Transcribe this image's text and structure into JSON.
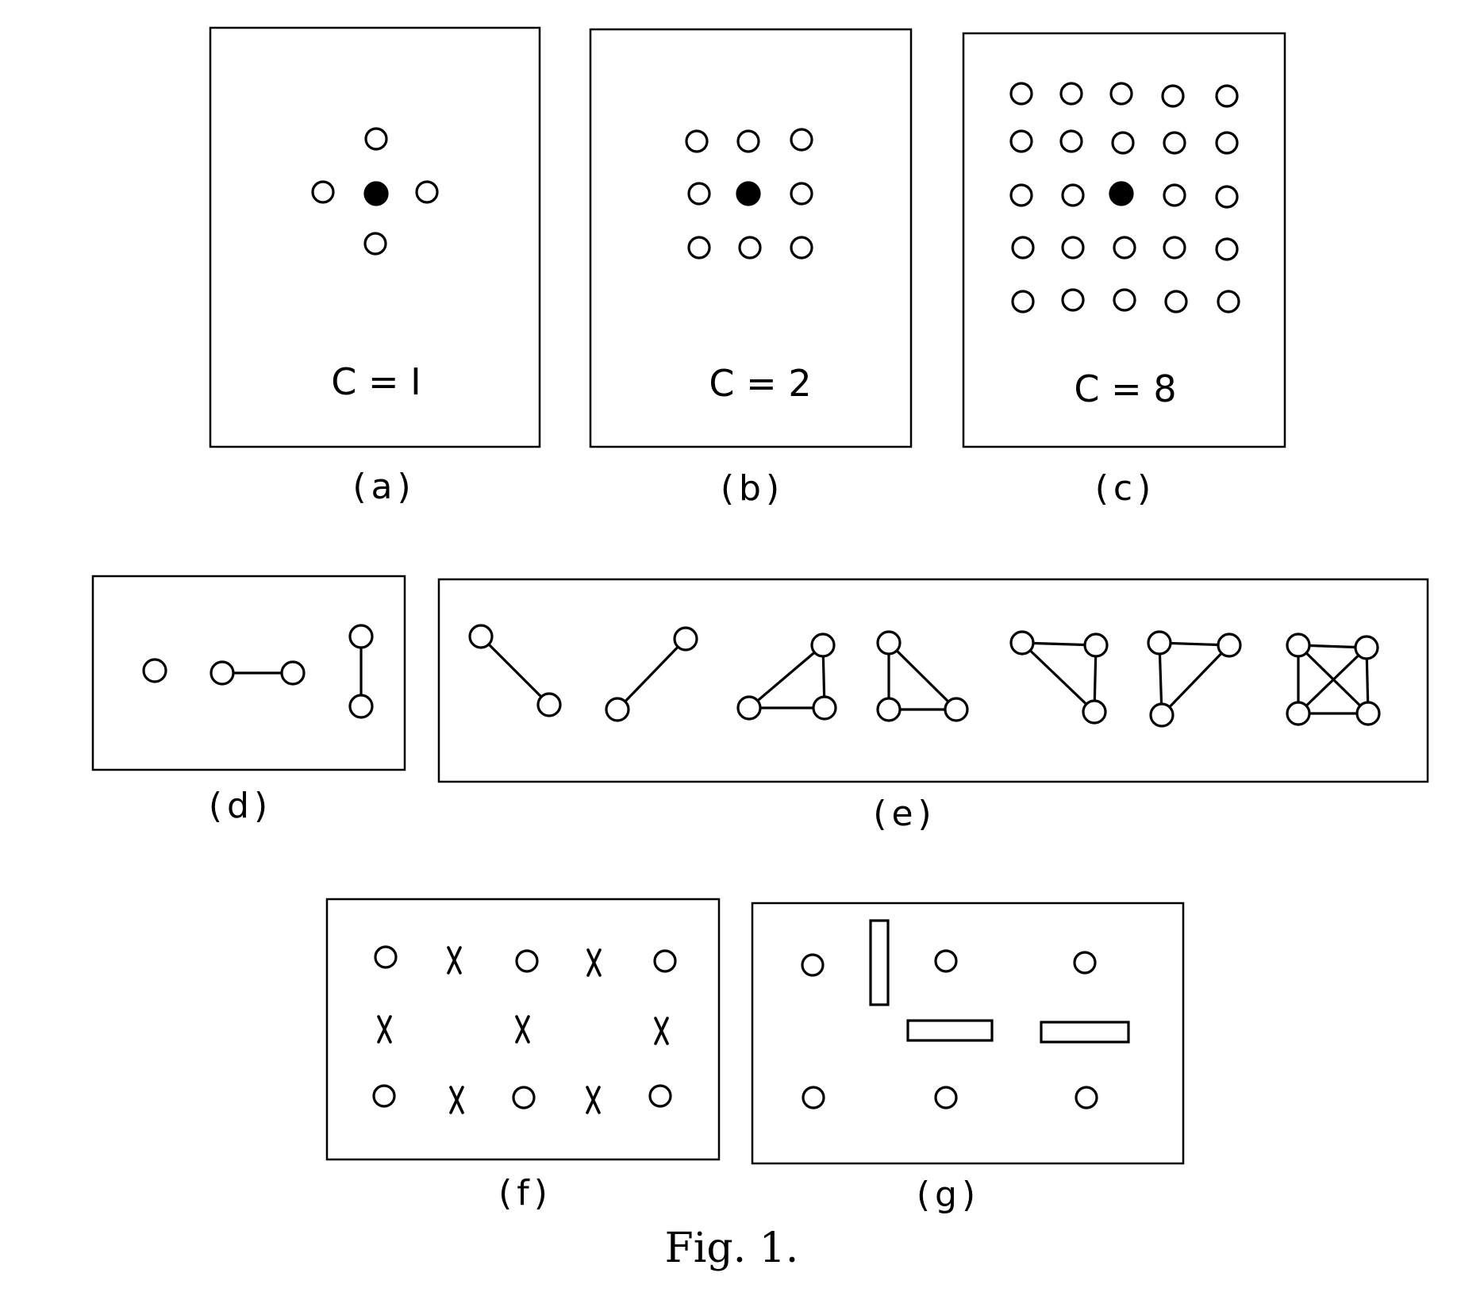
{
  "figure": {
    "caption": "Fig. 1.",
    "panels": {
      "a": {
        "label": "(a)",
        "c_text": "C = I"
      },
      "b": {
        "label": "(b)",
        "c_text": "C = 2"
      },
      "c": {
        "label": "(c)",
        "c_text": "C = 8"
      },
      "d": {
        "label": "(d)"
      },
      "e": {
        "label": "(e)"
      },
      "f": {
        "label": "(f)"
      },
      "g": {
        "label": "(g)"
      }
    }
  }
}
